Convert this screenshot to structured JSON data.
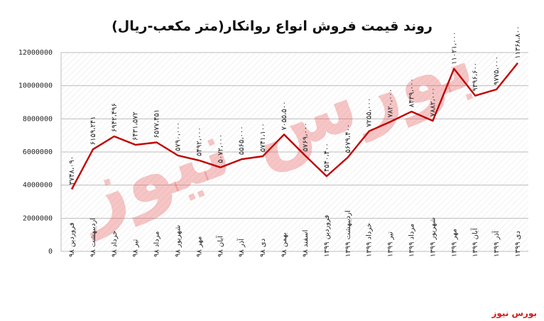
{
  "brand": "بورس نیوز",
  "watermark": "بورس نیوز",
  "chart_data": {
    "type": "line",
    "title": "روند قیمت فروش انواع روانکار(متر مکعب-ریال)",
    "xlabel": "",
    "ylabel": "",
    "ylim": [
      0,
      12000000
    ],
    "yticks": [
      0,
      2000000,
      4000000,
      6000000,
      8000000,
      10000000,
      12000000
    ],
    "ytick_labels": [
      "0",
      "2000000",
      "4000000",
      "6000000",
      "8000000",
      "10000000",
      "12000000"
    ],
    "grid": true,
    "legend": "none",
    "line_color": "#c00000",
    "categories": [
      "فروردین ۹۸",
      "اردیبهشت ۹۸",
      "خرداد ۹۸",
      "تیر ۹۸",
      "مرداد ۹۸",
      "شهریور ۹۸",
      "مهر ۹۸",
      "آبان ۹۸",
      "آذر ۹۸",
      "دی ۹۸",
      "بهمن ۹۸",
      "اسفند ۹۸",
      "فروردین ۱۳۹۹",
      "اردیبهشت ۱۳۹۹",
      "خرداد ۱۳۹۹",
      "تیر ۱۳۹۹",
      "مرداد ۱۳۹۹",
      "شهریور ۱۳۹۹",
      "مهر ۱۳۹۹",
      "آبان ۱۳۹۹",
      "آذر ۱۳۹۹",
      "دی ۱۳۹۹"
    ],
    "values": [
      3748090,
      6159241,
      6942496,
      6431572,
      6577451,
      5790000,
      5492000,
      5072000,
      5565000,
      5741100,
      7055500,
      5769000,
      4540400,
      5679400,
      7255000,
      7820000,
      8439000,
      7882000,
      11021000,
      9396600,
      9775000,
      11368800
    ],
    "data_labels": [
      "۳۷۴۸،۰۹۰",
      "۶۱۵۹،۲۴۱",
      "۶۹۴۲،۴۹۶",
      "۶۴۳۱،۵۷۲",
      "۶۵۷۷،۴۵۱",
      "۵۷۹۰،۰۰۰",
      "۵۴۹۲،۰۰۰",
      "۵۰۷۲،۰۰۰",
      "۵۵۶۵،۰۰۰",
      "۵۷۴۱،۱۰۰",
      "۷۰۵۵،۵۰۰",
      "۵۷۶۹،۰۰۰",
      "۴۵۴۰،۴۰۰",
      "۵۶۷۹،۴۰۰",
      "۷۲۵۵،۰۰۰",
      "۷۸۲۰،۰۰۰",
      "۸۴۳۹،۰۰۰",
      "۷۸۸۲،۰۰۰",
      "۱۱۰۲۱،۰۰۰",
      "۹۳۹۶،۶۰۰",
      "۹۷۷۵،۰۰۰",
      "۱۱۳۶۸،۸۰۰"
    ]
  }
}
